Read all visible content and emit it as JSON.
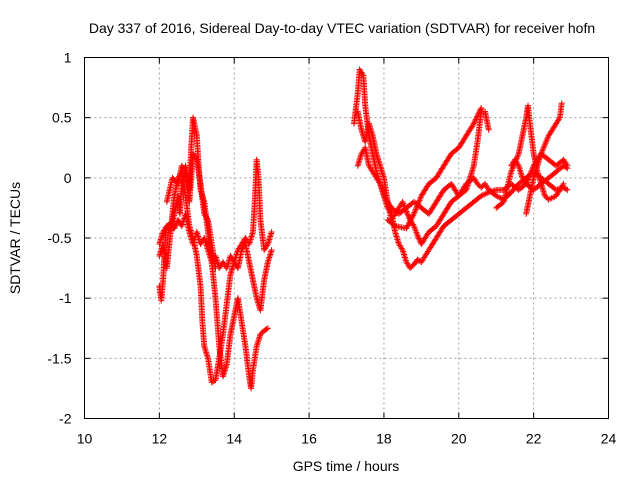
{
  "chart_data": {
    "type": "scatter",
    "title": "Day 337 of 2016, Sidereal Day-to-day VTEC variation (SDTVAR) for receiver hofn",
    "xlabel": "GPS time / hours",
    "ylabel": "SDTVAR / TECUs",
    "xlim": [
      10,
      24
    ],
    "ylim": [
      -2,
      1
    ],
    "xticks": [
      "10",
      "12",
      "14",
      "16",
      "18",
      "20",
      "22",
      "24"
    ],
    "yticks": [
      "1",
      "0.5",
      "0",
      "-0.5",
      "-1",
      "-1.5",
      "-2"
    ],
    "grid": true,
    "marker": "+",
    "color": "#ff0000",
    "series": [
      {
        "name": "SDTVAR",
        "tracks": [
          [
            [
              12.0,
              -0.9
            ],
            [
              12.05,
              -1.02
            ],
            [
              12.1,
              -0.85
            ],
            [
              12.15,
              -0.55
            ],
            [
              12.2,
              -0.4
            ],
            [
              12.3,
              -0.45
            ],
            [
              12.4,
              -0.3
            ],
            [
              12.5,
              -0.15
            ],
            [
              12.55,
              -0.3
            ],
            [
              12.6,
              -0.05
            ],
            [
              12.7,
              0.1
            ],
            [
              12.8,
              -0.1
            ],
            [
              12.85,
              0.25
            ],
            [
              12.9,
              0.5
            ],
            [
              13.0,
              0.35
            ],
            [
              13.05,
              0.1
            ],
            [
              13.1,
              -0.1
            ],
            [
              13.2,
              -0.2
            ],
            [
              13.3,
              -0.45
            ],
            [
              13.4,
              -0.7
            ],
            [
              13.5,
              -1.0
            ],
            [
              13.6,
              -1.4
            ],
            [
              13.7,
              -1.65
            ],
            [
              13.8,
              -1.55
            ],
            [
              13.9,
              -1.3
            ],
            [
              14.0,
              -1.15
            ],
            [
              14.1,
              -1.0
            ],
            [
              14.2,
              -1.2
            ],
            [
              14.3,
              -1.4
            ],
            [
              14.4,
              -1.65
            ],
            [
              14.45,
              -1.75
            ],
            [
              14.5,
              -1.6
            ],
            [
              14.6,
              -1.4
            ],
            [
              14.7,
              -1.3
            ],
            [
              14.8,
              -1.27
            ],
            [
              14.9,
              -1.25
            ]
          ],
          [
            [
              12.0,
              -0.65
            ],
            [
              12.1,
              -0.55
            ],
            [
              12.2,
              -0.75
            ],
            [
              12.3,
              -0.45
            ],
            [
              12.4,
              -0.15
            ],
            [
              12.5,
              0.0
            ],
            [
              12.6,
              0.05
            ],
            [
              12.7,
              -0.15
            ],
            [
              12.8,
              -0.4
            ],
            [
              12.9,
              -0.5
            ],
            [
              13.0,
              -0.65
            ],
            [
              13.1,
              -0.9
            ],
            [
              13.15,
              -1.2
            ],
            [
              13.2,
              -1.4
            ],
            [
              13.3,
              -1.5
            ],
            [
              13.4,
              -1.7
            ],
            [
              13.5,
              -1.68
            ],
            [
              13.6,
              -1.5
            ],
            [
              13.7,
              -1.3
            ],
            [
              13.8,
              -1.05
            ],
            [
              13.9,
              -0.8
            ],
            [
              14.0,
              -0.7
            ],
            [
              14.1,
              -0.75
            ],
            [
              14.2,
              -0.6
            ],
            [
              14.3,
              -0.55
            ],
            [
              14.4,
              -0.7
            ],
            [
              14.5,
              -0.85
            ],
            [
              14.6,
              -1.0
            ],
            [
              14.7,
              -1.1
            ],
            [
              14.8,
              -0.85
            ],
            [
              14.9,
              -0.7
            ],
            [
              15.0,
              -0.6
            ]
          ],
          [
            [
              12.0,
              -0.55
            ],
            [
              12.1,
              -0.45
            ],
            [
              12.2,
              -0.4
            ],
            [
              12.3,
              -0.38
            ],
            [
              12.4,
              -0.42
            ],
            [
              12.5,
              -0.35
            ],
            [
              12.6,
              -0.4
            ],
            [
              12.7,
              -0.3
            ],
            [
              12.8,
              -0.45
            ],
            [
              12.9,
              -0.55
            ],
            [
              13.0,
              -0.45
            ],
            [
              13.1,
              -0.55
            ],
            [
              13.2,
              -0.5
            ],
            [
              13.3,
              -0.6
            ],
            [
              13.4,
              -0.7
            ],
            [
              13.5,
              -0.65
            ],
            [
              13.6,
              -0.75
            ],
            [
              13.7,
              -0.7
            ],
            [
              13.8,
              -0.75
            ],
            [
              13.9,
              -0.65
            ],
            [
              14.0,
              -0.7
            ],
            [
              14.1,
              -0.6
            ],
            [
              14.2,
              -0.55
            ],
            [
              14.3,
              -0.5
            ],
            [
              14.4,
              -0.55
            ],
            [
              14.5,
              -0.45
            ],
            [
              14.55,
              -0.2
            ],
            [
              14.6,
              0.15
            ],
            [
              14.65,
              0.0
            ],
            [
              14.7,
              -0.35
            ],
            [
              14.8,
              -0.6
            ],
            [
              14.9,
              -0.55
            ],
            [
              15.0,
              -0.45
            ]
          ],
          [
            [
              12.2,
              -0.2
            ],
            [
              12.35,
              0.0
            ],
            [
              12.5,
              -0.05
            ],
            [
              12.6,
              0.1
            ],
            [
              12.7,
              0.05
            ],
            [
              12.8,
              -0.2
            ],
            [
              12.9,
              0.2
            ],
            [
              13.0,
              0.15
            ],
            [
              13.1,
              -0.05
            ],
            [
              13.2,
              -0.3
            ],
            [
              13.3,
              -0.35
            ],
            [
              13.4,
              -0.55
            ],
            [
              13.5,
              -0.75
            ]
          ],
          [
            [
              17.2,
              0.45
            ],
            [
              17.3,
              0.7
            ],
            [
              17.35,
              0.9
            ],
            [
              17.45,
              0.85
            ],
            [
              17.5,
              0.6
            ],
            [
              17.6,
              0.35
            ],
            [
              17.7,
              0.2
            ],
            [
              17.8,
              0.05
            ],
            [
              17.9,
              -0.05
            ],
            [
              18.0,
              -0.15
            ],
            [
              18.1,
              -0.25
            ],
            [
              18.2,
              -0.3
            ],
            [
              18.3,
              -0.45
            ],
            [
              18.4,
              -0.55
            ],
            [
              18.5,
              -0.6
            ],
            [
              18.6,
              -0.7
            ],
            [
              18.7,
              -0.75
            ],
            [
              18.8,
              -0.72
            ],
            [
              18.9,
              -0.68
            ],
            [
              19.0,
              -0.7
            ],
            [
              19.1,
              -0.65
            ],
            [
              19.2,
              -0.6
            ],
            [
              19.4,
              -0.5
            ],
            [
              19.6,
              -0.4
            ],
            [
              19.8,
              -0.35
            ],
            [
              20.0,
              -0.3
            ],
            [
              20.2,
              -0.25
            ],
            [
              20.4,
              -0.2
            ],
            [
              20.6,
              -0.15
            ],
            [
              20.8,
              -0.12
            ],
            [
              21.0,
              -0.1
            ],
            [
              21.2,
              -0.1
            ],
            [
              21.4,
              -0.05
            ],
            [
              21.6,
              -0.1
            ],
            [
              21.8,
              -0.05
            ],
            [
              22.0,
              -0.1
            ],
            [
              22.2,
              -0.05
            ],
            [
              22.4,
              0.0
            ],
            [
              22.6,
              0.05
            ],
            [
              22.8,
              0.1
            ],
            [
              22.9,
              0.08
            ]
          ],
          [
            [
              17.3,
              0.55
            ],
            [
              17.4,
              0.4
            ],
            [
              17.5,
              0.3
            ],
            [
              17.6,
              0.45
            ],
            [
              17.7,
              0.35
            ],
            [
              17.8,
              0.2
            ],
            [
              17.9,
              0.1
            ],
            [
              18.0,
              0.0
            ],
            [
              18.1,
              -0.2
            ],
            [
              18.2,
              -0.35
            ],
            [
              18.3,
              -0.3
            ],
            [
              18.4,
              -0.25
            ],
            [
              18.5,
              -0.2
            ],
            [
              18.6,
              -0.28
            ],
            [
              18.7,
              -0.35
            ],
            [
              18.8,
              -0.4
            ],
            [
              18.9,
              -0.48
            ],
            [
              19.0,
              -0.55
            ],
            [
              19.2,
              -0.45
            ],
            [
              19.4,
              -0.4
            ],
            [
              19.6,
              -0.3
            ],
            [
              19.8,
              -0.2
            ],
            [
              20.0,
              -0.15
            ],
            [
              20.2,
              -0.05
            ],
            [
              20.4,
              0.0
            ],
            [
              20.5,
              -0.05
            ],
            [
              20.6,
              -0.08
            ],
            [
              20.7,
              -0.05
            ],
            [
              20.8,
              -0.1
            ],
            [
              21.0,
              -0.15
            ],
            [
              21.2,
              -0.18
            ],
            [
              21.4,
              -0.12
            ],
            [
              21.6,
              -0.05
            ],
            [
              21.8,
              0.0
            ],
            [
              22.0,
              0.05
            ],
            [
              22.2,
              0.0
            ],
            [
              22.4,
              -0.05
            ],
            [
              22.6,
              -0.1
            ],
            [
              22.8,
              -0.08
            ],
            [
              22.9,
              -0.1
            ]
          ],
          [
            [
              17.3,
              0.1
            ],
            [
              17.4,
              0.2
            ],
            [
              17.5,
              0.25
            ],
            [
              17.6,
              0.1
            ],
            [
              17.7,
              0.05
            ],
            [
              17.8,
              0.0
            ],
            [
              17.9,
              -0.05
            ],
            [
              18.0,
              -0.15
            ],
            [
              18.2,
              -0.25
            ],
            [
              18.4,
              -0.3
            ],
            [
              18.6,
              -0.25
            ],
            [
              18.8,
              -0.2
            ],
            [
              19.0,
              -0.25
            ],
            [
              19.2,
              -0.3
            ],
            [
              19.4,
              -0.2
            ],
            [
              19.6,
              -0.1
            ],
            [
              19.8,
              -0.05
            ],
            [
              20.0,
              -0.15
            ],
            [
              20.2,
              -0.1
            ],
            [
              20.4,
              0.1
            ],
            [
              20.5,
              0.3
            ],
            [
              20.6,
              0.55
            ],
            [
              20.7,
              0.55
            ],
            [
              20.8,
              0.4
            ]
          ],
          [
            [
              18.1,
              -0.35
            ],
            [
              18.3,
              -0.4
            ],
            [
              18.6,
              -0.42
            ],
            [
              18.8,
              -0.3
            ],
            [
              19.0,
              -0.15
            ],
            [
              19.2,
              -0.05
            ],
            [
              19.4,
              0.0
            ],
            [
              19.6,
              0.1
            ],
            [
              19.8,
              0.2
            ],
            [
              20.0,
              0.25
            ],
            [
              20.2,
              0.35
            ],
            [
              20.4,
              0.45
            ],
            [
              20.6,
              0.58
            ]
          ],
          [
            [
              21.0,
              -0.25
            ],
            [
              21.2,
              -0.2
            ],
            [
              21.4,
              0.05
            ],
            [
              21.6,
              0.2
            ],
            [
              21.7,
              0.35
            ],
            [
              21.8,
              0.5
            ],
            [
              21.85,
              0.6
            ],
            [
              21.9,
              0.45
            ],
            [
              22.0,
              0.2
            ],
            [
              22.1,
              0.05
            ],
            [
              22.2,
              -0.05
            ],
            [
              22.3,
              -0.15
            ],
            [
              22.4,
              -0.18
            ],
            [
              22.6,
              -0.15
            ],
            [
              22.7,
              -0.1
            ],
            [
              22.8,
              -0.05
            ]
          ],
          [
            [
              21.8,
              -0.3
            ],
            [
              21.9,
              -0.15
            ],
            [
              22.0,
              0.0
            ],
            [
              22.2,
              0.2
            ],
            [
              22.4,
              0.35
            ],
            [
              22.6,
              0.45
            ],
            [
              22.7,
              0.5
            ],
            [
              22.75,
              0.62
            ]
          ],
          [
            [
              21.4,
              0.1
            ],
            [
              21.5,
              0.15
            ],
            [
              21.6,
              0.1
            ],
            [
              21.7,
              0.0
            ],
            [
              21.8,
              -0.05
            ],
            [
              22.0,
              0.1
            ],
            [
              22.2,
              0.2
            ],
            [
              22.4,
              0.15
            ],
            [
              22.6,
              0.1
            ],
            [
              22.8,
              0.15
            ],
            [
              22.9,
              0.1
            ]
          ]
        ]
      }
    ]
  }
}
